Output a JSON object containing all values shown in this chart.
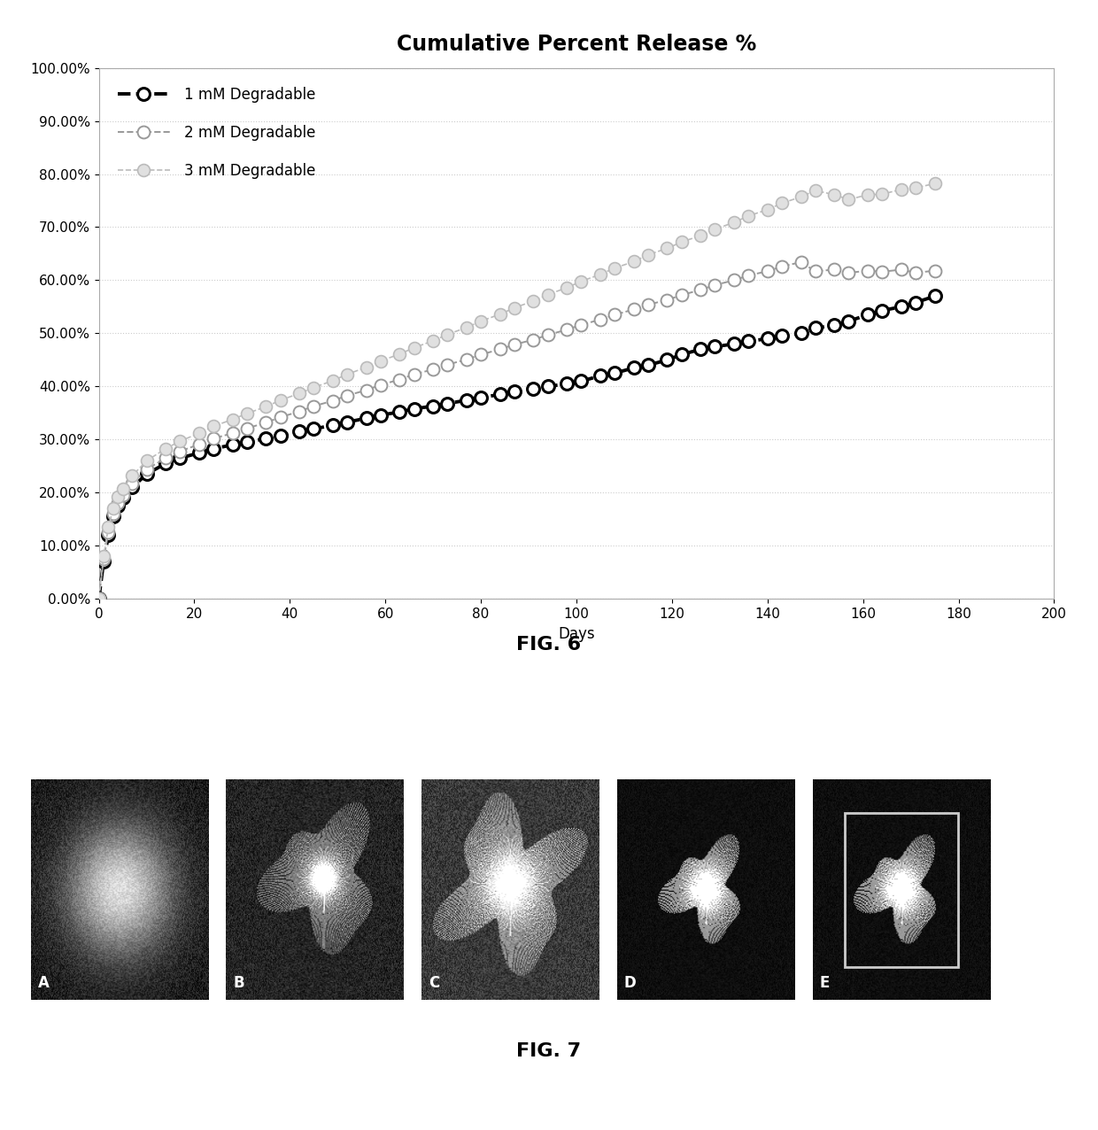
{
  "title": "Cumulative Percent Release %",
  "xlabel": "Days",
  "xlim": [
    0,
    200
  ],
  "ylim": [
    0.0,
    1.0
  ],
  "yticks": [
    0.0,
    0.1,
    0.2,
    0.3,
    0.4,
    0.5,
    0.6,
    0.7,
    0.8,
    0.9,
    1.0
  ],
  "ytick_labels": [
    "0.00%",
    "10.00%",
    "20.00%",
    "30.00%",
    "40.00%",
    "50.00%",
    "60.00%",
    "70.00%",
    "80.00%",
    "90.00%",
    "100.00%"
  ],
  "xticks": [
    0,
    20,
    40,
    60,
    80,
    100,
    120,
    140,
    160,
    180,
    200
  ],
  "series": [
    {
      "label": "1 mM Degradable",
      "days": [
        0,
        1,
        2,
        3,
        4,
        5,
        7,
        10,
        14,
        17,
        21,
        24,
        28,
        31,
        35,
        38,
        42,
        45,
        49,
        52,
        56,
        59,
        63,
        66,
        70,
        73,
        77,
        80,
        84,
        87,
        91,
        94,
        98,
        101,
        105,
        108,
        112,
        115,
        119,
        122,
        126,
        129,
        133,
        136,
        140,
        143,
        147,
        150,
        154,
        157,
        161,
        164,
        168,
        171,
        175
      ],
      "values": [
        0.0,
        0.07,
        0.12,
        0.155,
        0.175,
        0.19,
        0.21,
        0.235,
        0.255,
        0.265,
        0.275,
        0.283,
        0.29,
        0.295,
        0.302,
        0.308,
        0.315,
        0.32,
        0.327,
        0.333,
        0.34,
        0.346,
        0.352,
        0.358,
        0.363,
        0.368,
        0.374,
        0.379,
        0.385,
        0.39,
        0.395,
        0.4,
        0.405,
        0.41,
        0.42,
        0.425,
        0.435,
        0.44,
        0.45,
        0.46,
        0.47,
        0.475,
        0.48,
        0.485,
        0.49,
        0.495,
        0.5,
        0.51,
        0.515,
        0.523,
        0.535,
        0.543,
        0.55,
        0.558,
        0.57
      ]
    },
    {
      "label": "2 mM Degradable",
      "days": [
        0,
        1,
        2,
        3,
        4,
        5,
        7,
        10,
        14,
        17,
        21,
        24,
        28,
        31,
        35,
        38,
        42,
        45,
        49,
        52,
        56,
        59,
        63,
        66,
        70,
        73,
        77,
        80,
        84,
        87,
        91,
        94,
        98,
        101,
        105,
        108,
        112,
        115,
        119,
        122,
        126,
        129,
        133,
        136,
        140,
        143,
        147,
        150,
        154,
        157,
        161,
        164,
        168,
        171,
        175
      ],
      "values": [
        0.0,
        0.075,
        0.125,
        0.16,
        0.18,
        0.196,
        0.218,
        0.244,
        0.265,
        0.278,
        0.291,
        0.302,
        0.312,
        0.321,
        0.332,
        0.342,
        0.353,
        0.363,
        0.373,
        0.383,
        0.393,
        0.403,
        0.413,
        0.423,
        0.432,
        0.441,
        0.451,
        0.46,
        0.47,
        0.479,
        0.488,
        0.497,
        0.507,
        0.516,
        0.526,
        0.535,
        0.545,
        0.554,
        0.563,
        0.572,
        0.582,
        0.591,
        0.6,
        0.609,
        0.617,
        0.626,
        0.634,
        0.617,
        0.62,
        0.614,
        0.618,
        0.616,
        0.62,
        0.614,
        0.618
      ]
    },
    {
      "label": "3 mM Degradable",
      "days": [
        0,
        1,
        2,
        3,
        4,
        5,
        7,
        10,
        14,
        17,
        21,
        24,
        28,
        31,
        35,
        38,
        42,
        45,
        49,
        52,
        56,
        59,
        63,
        66,
        70,
        73,
        77,
        80,
        84,
        87,
        91,
        94,
        98,
        101,
        105,
        108,
        112,
        115,
        119,
        122,
        126,
        129,
        133,
        136,
        140,
        143,
        147,
        150,
        154,
        157,
        161,
        164,
        168,
        171,
        175
      ],
      "values": [
        0.0,
        0.08,
        0.135,
        0.17,
        0.192,
        0.208,
        0.232,
        0.26,
        0.283,
        0.297,
        0.312,
        0.325,
        0.338,
        0.349,
        0.362,
        0.374,
        0.387,
        0.398,
        0.411,
        0.423,
        0.436,
        0.448,
        0.461,
        0.473,
        0.486,
        0.498,
        0.511,
        0.523,
        0.536,
        0.548,
        0.561,
        0.573,
        0.586,
        0.598,
        0.611,
        0.623,
        0.635,
        0.648,
        0.66,
        0.672,
        0.684,
        0.696,
        0.709,
        0.721,
        0.733,
        0.745,
        0.757,
        0.769,
        0.761,
        0.752,
        0.761,
        0.762,
        0.771,
        0.774,
        0.782
      ]
    }
  ],
  "fig_caption1": "FIG. 6",
  "fig_caption2": "FIG. 7",
  "background_color": "#ffffff",
  "title_fontsize": 17,
  "axis_fontsize": 12,
  "tick_fontsize": 11,
  "legend_fontsize": 12
}
